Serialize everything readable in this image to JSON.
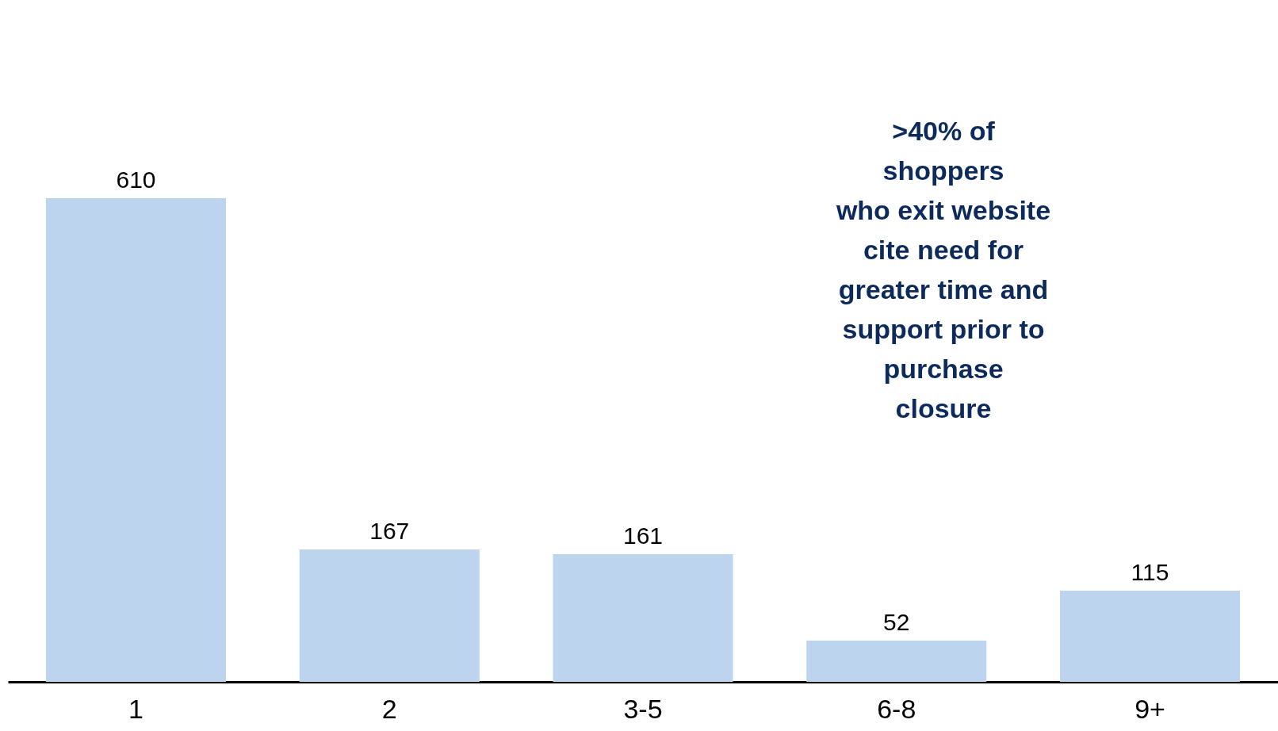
{
  "chart_data": {
    "type": "bar",
    "categories": [
      "1",
      "2",
      "3-5",
      "6-8",
      "9+"
    ],
    "values": [
      610,
      167,
      161,
      52,
      115
    ],
    "color": "#bcd4ee",
    "data_labels": true,
    "tick_labels": "x",
    "grid": false,
    "annotations": [
      ">40% of\nshoppers\nwho exit website\ncite need for\ngreater time and\nsupport prior to\npurchase\nclosure"
    ]
  }
}
